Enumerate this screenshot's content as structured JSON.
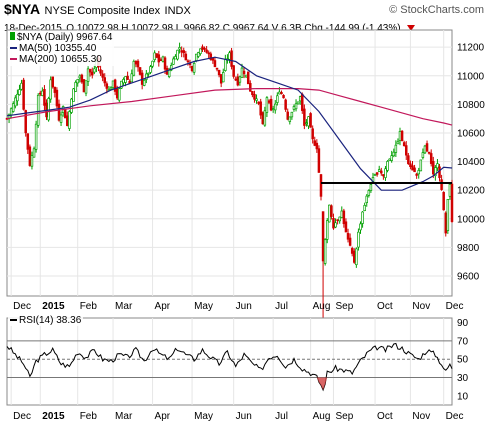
{
  "header": {
    "symbol": "$NYA",
    "name": "NYSE Composite Index",
    "exchange": "INDX",
    "watermark": "© StockCharts.com",
    "date": "18-Dec-2015",
    "ohlc": "O 10072.98  H 10072.98  L 9966.82  C 9967.64  V 6.3B  Chg -144.99 (-1.43%)",
    "chg_arrow": "down-triangle-icon"
  },
  "legend": {
    "price": "$NYA (Daily) 9967.64",
    "ma50": "MA(50) 10355.40",
    "ma200": "MA(200) 10655.30",
    "rsi": "RSI(14) 38.36"
  },
  "colors": {
    "up": "#00a000",
    "down": "#d00000",
    "ma50": "#1a237e",
    "ma200": "#c2185b",
    "rsi": "#000000",
    "grid": "#e6e6e6",
    "hline": "#000000"
  },
  "chart_data": [
    {
      "type": "candlestick",
      "title": "$NYA (Daily)",
      "ylim": [
        9460,
        11320
      ],
      "y_ticks": [
        9600,
        9800,
        10000,
        10200,
        10400,
        10600,
        10800,
        11000,
        11200
      ],
      "x_labels": [
        "Dec",
        "2015",
        "Feb",
        "Mar",
        "Apr",
        "May",
        "Jun",
        "Jul",
        "Aug",
        "Sep",
        "Oct",
        "Nov",
        "Dec"
      ],
      "support_line": 10250,
      "series_close": [
        {
          "x": 0,
          "y": 10700
        },
        {
          "x": 3,
          "y": 10800
        },
        {
          "x": 5,
          "y": 10880
        },
        {
          "x": 7,
          "y": 10950
        },
        {
          "x": 9,
          "y": 10600
        },
        {
          "x": 11,
          "y": 10380
        },
        {
          "x": 13,
          "y": 10500
        },
        {
          "x": 15,
          "y": 10850
        },
        {
          "x": 17,
          "y": 10900
        },
        {
          "x": 19,
          "y": 10700
        },
        {
          "x": 21,
          "y": 10980
        },
        {
          "x": 23,
          "y": 10880
        },
        {
          "x": 25,
          "y": 10700
        },
        {
          "x": 27,
          "y": 10780
        },
        {
          "x": 29,
          "y": 10650
        },
        {
          "x": 31,
          "y": 10850
        },
        {
          "x": 33,
          "y": 10950
        },
        {
          "x": 35,
          "y": 11000
        },
        {
          "x": 37,
          "y": 10900
        },
        {
          "x": 39,
          "y": 11050
        },
        {
          "x": 41,
          "y": 11000
        },
        {
          "x": 43,
          "y": 11100
        },
        {
          "x": 45,
          "y": 11020
        },
        {
          "x": 47,
          "y": 10950
        },
        {
          "x": 49,
          "y": 10900
        },
        {
          "x": 51,
          "y": 10950
        },
        {
          "x": 53,
          "y": 10850
        },
        {
          "x": 55,
          "y": 10950
        },
        {
          "x": 57,
          "y": 11000
        },
        {
          "x": 59,
          "y": 10950
        },
        {
          "x": 61,
          "y": 11100
        },
        {
          "x": 63,
          "y": 11050
        },
        {
          "x": 65,
          "y": 10950
        },
        {
          "x": 67,
          "y": 11000
        },
        {
          "x": 69,
          "y": 11050
        },
        {
          "x": 71,
          "y": 11150
        },
        {
          "x": 73,
          "y": 11100
        },
        {
          "x": 75,
          "y": 11120
        },
        {
          "x": 77,
          "y": 11000
        },
        {
          "x": 79,
          "y": 11080
        },
        {
          "x": 81,
          "y": 11150
        },
        {
          "x": 83,
          "y": 11200
        },
        {
          "x": 85,
          "y": 11150
        },
        {
          "x": 87,
          "y": 11100
        },
        {
          "x": 89,
          "y": 11050
        },
        {
          "x": 91,
          "y": 11150
        },
        {
          "x": 93,
          "y": 11200
        },
        {
          "x": 95,
          "y": 11180
        },
        {
          "x": 97,
          "y": 11150
        },
        {
          "x": 99,
          "y": 11100
        },
        {
          "x": 101,
          "y": 11050
        },
        {
          "x": 103,
          "y": 10950
        },
        {
          "x": 105,
          "y": 11100
        },
        {
          "x": 107,
          "y": 11150
        },
        {
          "x": 109,
          "y": 11000
        },
        {
          "x": 111,
          "y": 10950
        },
        {
          "x": 113,
          "y": 11050
        },
        {
          "x": 115,
          "y": 11000
        },
        {
          "x": 117,
          "y": 10900
        },
        {
          "x": 119,
          "y": 10850
        },
        {
          "x": 121,
          "y": 10800
        },
        {
          "x": 123,
          "y": 10650
        },
        {
          "x": 125,
          "y": 10850
        },
        {
          "x": 127,
          "y": 10750
        },
        {
          "x": 129,
          "y": 10800
        },
        {
          "x": 131,
          "y": 10900
        },
        {
          "x": 133,
          "y": 10850
        },
        {
          "x": 135,
          "y": 10700
        },
        {
          "x": 137,
          "y": 10750
        },
        {
          "x": 139,
          "y": 10800
        },
        {
          "x": 141,
          "y": 10850
        },
        {
          "x": 143,
          "y": 10650
        },
        {
          "x": 145,
          "y": 10700
        },
        {
          "x": 147,
          "y": 10550
        },
        {
          "x": 149,
          "y": 10500
        },
        {
          "x": 151,
          "y": 10150
        },
        {
          "x": 152,
          "y": 9700
        },
        {
          "x": 153,
          "y": 9850
        },
        {
          "x": 155,
          "y": 10100
        },
        {
          "x": 157,
          "y": 9950
        },
        {
          "x": 159,
          "y": 10000
        },
        {
          "x": 161,
          "y": 10050
        },
        {
          "x": 163,
          "y": 9900
        },
        {
          "x": 165,
          "y": 9800
        },
        {
          "x": 167,
          "y": 9700
        },
        {
          "x": 169,
          "y": 9900
        },
        {
          "x": 171,
          "y": 10050
        },
        {
          "x": 173,
          "y": 10150
        },
        {
          "x": 175,
          "y": 10250
        },
        {
          "x": 177,
          "y": 10300
        },
        {
          "x": 179,
          "y": 10350
        },
        {
          "x": 181,
          "y": 10300
        },
        {
          "x": 183,
          "y": 10400
        },
        {
          "x": 185,
          "y": 10450
        },
        {
          "x": 187,
          "y": 10500
        },
        {
          "x": 189,
          "y": 10600
        },
        {
          "x": 191,
          "y": 10500
        },
        {
          "x": 193,
          "y": 10400
        },
        {
          "x": 195,
          "y": 10350
        },
        {
          "x": 197,
          "y": 10300
        },
        {
          "x": 199,
          "y": 10400
        },
        {
          "x": 201,
          "y": 10500
        },
        {
          "x": 203,
          "y": 10450
        },
        {
          "x": 205,
          "y": 10300
        },
        {
          "x": 207,
          "y": 10400
        },
        {
          "x": 209,
          "y": 10200
        },
        {
          "x": 210,
          "y": 10050
        },
        {
          "x": 211,
          "y": 9900
        },
        {
          "x": 212,
          "y": 10150
        },
        {
          "x": 213,
          "y": 10250
        },
        {
          "x": 214,
          "y": 9968
        }
      ],
      "series_ma50": [
        {
          "x": 0,
          "y": 10720
        },
        {
          "x": 10,
          "y": 10740
        },
        {
          "x": 20,
          "y": 10760
        },
        {
          "x": 30,
          "y": 10780
        },
        {
          "x": 40,
          "y": 10830
        },
        {
          "x": 50,
          "y": 10900
        },
        {
          "x": 60,
          "y": 10950
        },
        {
          "x": 70,
          "y": 11000
        },
        {
          "x": 80,
          "y": 11050
        },
        {
          "x": 90,
          "y": 11100
        },
        {
          "x": 100,
          "y": 11130
        },
        {
          "x": 110,
          "y": 11100
        },
        {
          "x": 120,
          "y": 11000
        },
        {
          "x": 130,
          "y": 10950
        },
        {
          "x": 140,
          "y": 10900
        },
        {
          "x": 150,
          "y": 10750
        },
        {
          "x": 160,
          "y": 10550
        },
        {
          "x": 170,
          "y": 10350
        },
        {
          "x": 180,
          "y": 10200
        },
        {
          "x": 190,
          "y": 10200
        },
        {
          "x": 200,
          "y": 10260
        },
        {
          "x": 205,
          "y": 10300
        },
        {
          "x": 210,
          "y": 10360
        },
        {
          "x": 214,
          "y": 10355
        }
      ],
      "series_ma200": [
        {
          "x": 0,
          "y": 10700
        },
        {
          "x": 20,
          "y": 10750
        },
        {
          "x": 40,
          "y": 10790
        },
        {
          "x": 60,
          "y": 10820
        },
        {
          "x": 80,
          "y": 10860
        },
        {
          "x": 100,
          "y": 10900
        },
        {
          "x": 120,
          "y": 10910
        },
        {
          "x": 140,
          "y": 10910
        },
        {
          "x": 150,
          "y": 10900
        },
        {
          "x": 160,
          "y": 10860
        },
        {
          "x": 170,
          "y": 10820
        },
        {
          "x": 180,
          "y": 10780
        },
        {
          "x": 190,
          "y": 10740
        },
        {
          "x": 200,
          "y": 10700
        },
        {
          "x": 210,
          "y": 10670
        },
        {
          "x": 214,
          "y": 10655
        }
      ]
    },
    {
      "type": "line",
      "title": "RSI(14)",
      "ylim": [
        0,
        95
      ],
      "y_ticks": [
        10,
        30,
        50,
        70,
        90
      ],
      "reference_lines": [
        30,
        50,
        70
      ],
      "x_labels": [
        "Dec",
        "2015",
        "Feb",
        "Mar",
        "Apr",
        "May",
        "Jun",
        "Jul",
        "Aug",
        "Sep",
        "Oct",
        "Nov",
        "Dec"
      ],
      "values": [
        {
          "x": 0,
          "y": 65
        },
        {
          "x": 4,
          "y": 55
        },
        {
          "x": 8,
          "y": 45
        },
        {
          "x": 11,
          "y": 30
        },
        {
          "x": 14,
          "y": 48
        },
        {
          "x": 18,
          "y": 55
        },
        {
          "x": 22,
          "y": 60
        },
        {
          "x": 26,
          "y": 45
        },
        {
          "x": 30,
          "y": 42
        },
        {
          "x": 34,
          "y": 58
        },
        {
          "x": 38,
          "y": 52
        },
        {
          "x": 42,
          "y": 60
        },
        {
          "x": 46,
          "y": 50
        },
        {
          "x": 50,
          "y": 48
        },
        {
          "x": 54,
          "y": 55
        },
        {
          "x": 58,
          "y": 52
        },
        {
          "x": 62,
          "y": 60
        },
        {
          "x": 66,
          "y": 48
        },
        {
          "x": 70,
          "y": 62
        },
        {
          "x": 74,
          "y": 55
        },
        {
          "x": 78,
          "y": 50
        },
        {
          "x": 82,
          "y": 62
        },
        {
          "x": 86,
          "y": 55
        },
        {
          "x": 90,
          "y": 50
        },
        {
          "x": 94,
          "y": 60
        },
        {
          "x": 98,
          "y": 52
        },
        {
          "x": 102,
          "y": 45
        },
        {
          "x": 106,
          "y": 58
        },
        {
          "x": 110,
          "y": 42
        },
        {
          "x": 114,
          "y": 55
        },
        {
          "x": 118,
          "y": 45
        },
        {
          "x": 122,
          "y": 38
        },
        {
          "x": 126,
          "y": 52
        },
        {
          "x": 130,
          "y": 55
        },
        {
          "x": 134,
          "y": 42
        },
        {
          "x": 138,
          "y": 50
        },
        {
          "x": 142,
          "y": 40
        },
        {
          "x": 146,
          "y": 35
        },
        {
          "x": 149,
          "y": 30
        },
        {
          "x": 151,
          "y": 22
        },
        {
          "x": 152,
          "y": 16
        },
        {
          "x": 154,
          "y": 35
        },
        {
          "x": 158,
          "y": 40
        },
        {
          "x": 162,
          "y": 38
        },
        {
          "x": 166,
          "y": 35
        },
        {
          "x": 170,
          "y": 48
        },
        {
          "x": 174,
          "y": 58
        },
        {
          "x": 178,
          "y": 63
        },
        {
          "x": 182,
          "y": 60
        },
        {
          "x": 186,
          "y": 66
        },
        {
          "x": 190,
          "y": 62
        },
        {
          "x": 194,
          "y": 55
        },
        {
          "x": 198,
          "y": 50
        },
        {
          "x": 202,
          "y": 60
        },
        {
          "x": 206,
          "y": 55
        },
        {
          "x": 209,
          "y": 45
        },
        {
          "x": 211,
          "y": 36
        },
        {
          "x": 213,
          "y": 45
        },
        {
          "x": 214,
          "y": 38.36
        }
      ]
    }
  ]
}
